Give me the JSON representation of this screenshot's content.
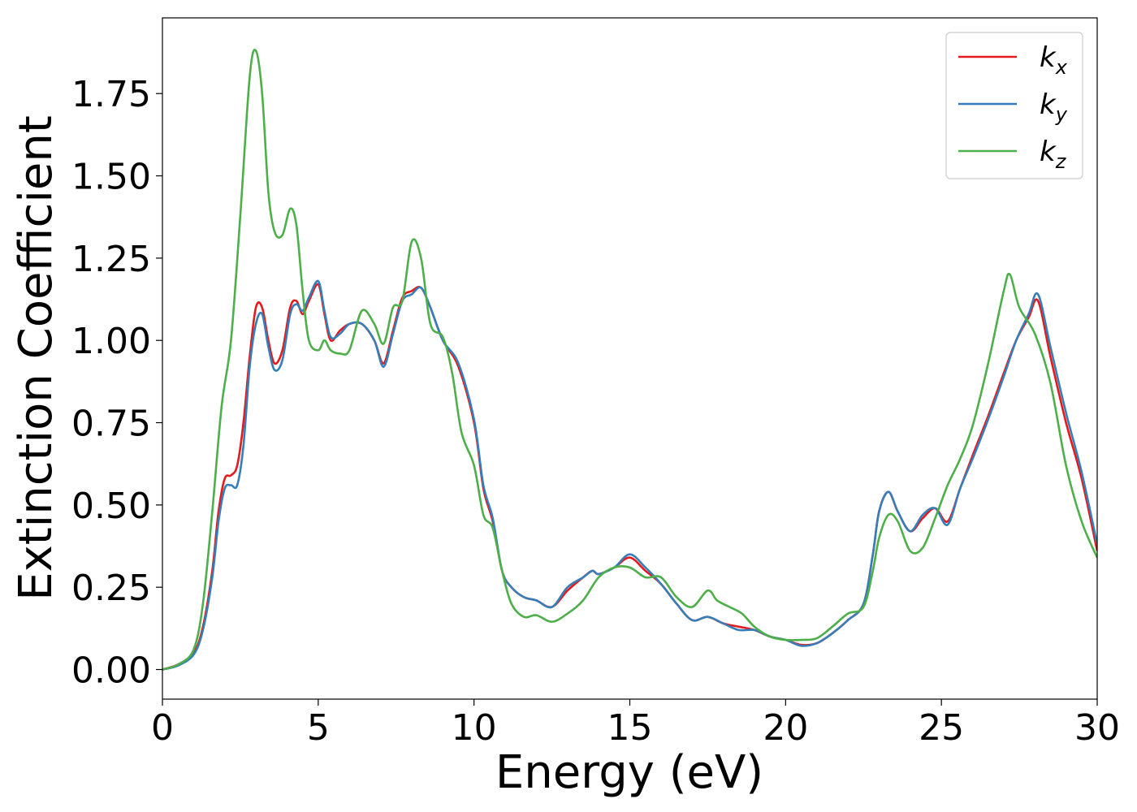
{
  "chart_data": {
    "type": "line",
    "xlabel": "Energy (eV)",
    "ylabel": "Extinction Coefficient",
    "xlim": [
      0,
      30
    ],
    "ylim": [
      -0.09,
      1.98
    ],
    "xticks": [
      0,
      5,
      10,
      15,
      20,
      25,
      30
    ],
    "xtick_labels": [
      "0",
      "5",
      "10",
      "15",
      "20",
      "25",
      "30"
    ],
    "yticks": [
      0.0,
      0.25,
      0.5,
      0.75,
      1.0,
      1.25,
      1.5,
      1.75
    ],
    "ytick_labels": [
      "0.00",
      "0.25",
      "0.50",
      "0.75",
      "1.00",
      "1.25",
      "1.50",
      "1.75"
    ],
    "grid": false,
    "legend_position": "top-right",
    "series": [
      {
        "name": "kx",
        "base": "k",
        "sub": "x",
        "color": "#e41a1c",
        "x": [
          0,
          0.5,
          1.0,
          1.3,
          1.6,
          1.8,
          2.0,
          2.2,
          2.4,
          2.6,
          2.8,
          3.0,
          3.2,
          3.4,
          3.6,
          3.85,
          4.1,
          4.3,
          4.5,
          4.7,
          5.0,
          5.2,
          5.4,
          5.7,
          6.0,
          6.4,
          6.8,
          7.1,
          7.4,
          7.7,
          8.0,
          8.3,
          8.6,
          9.0,
          9.5,
          10.0,
          10.3,
          10.6,
          10.9,
          11.2,
          11.6,
          12.0,
          12.5,
          13.0,
          13.5,
          13.8,
          14.0,
          14.5,
          15.0,
          15.5,
          16.0,
          16.5,
          17.0,
          17.5,
          18.0,
          18.5,
          19.0,
          19.5,
          20.0,
          20.5,
          21.0,
          21.5,
          22.0,
          22.5,
          22.8,
          23.0,
          23.3,
          23.6,
          24.0,
          24.4,
          24.8,
          25.2,
          25.6,
          26.0,
          26.5,
          27.0,
          27.4,
          27.8,
          28.1,
          28.5,
          29.0,
          29.5,
          30.0
        ],
        "y": [
          0.0,
          0.015,
          0.05,
          0.13,
          0.3,
          0.48,
          0.58,
          0.59,
          0.62,
          0.75,
          0.95,
          1.1,
          1.1,
          1.0,
          0.93,
          0.97,
          1.1,
          1.12,
          1.08,
          1.12,
          1.17,
          1.08,
          1.0,
          1.03,
          1.05,
          1.05,
          1.0,
          0.93,
          1.03,
          1.13,
          1.15,
          1.16,
          1.1,
          1.0,
          0.92,
          0.75,
          0.55,
          0.45,
          0.3,
          0.25,
          0.22,
          0.21,
          0.19,
          0.24,
          0.28,
          0.3,
          0.29,
          0.31,
          0.34,
          0.3,
          0.26,
          0.2,
          0.15,
          0.16,
          0.14,
          0.13,
          0.12,
          0.1,
          0.09,
          0.075,
          0.08,
          0.11,
          0.15,
          0.2,
          0.35,
          0.48,
          0.54,
          0.48,
          0.42,
          0.46,
          0.49,
          0.45,
          0.55,
          0.65,
          0.77,
          0.9,
          1.0,
          1.07,
          1.12,
          0.95,
          0.75,
          0.58,
          0.36
        ]
      },
      {
        "name": "ky",
        "base": "k",
        "sub": "y",
        "color": "#377eb8",
        "x": [
          0,
          0.5,
          1.0,
          1.3,
          1.6,
          1.8,
          2.0,
          2.2,
          2.4,
          2.6,
          2.8,
          3.0,
          3.2,
          3.4,
          3.6,
          3.85,
          4.1,
          4.3,
          4.5,
          4.7,
          5.0,
          5.2,
          5.4,
          5.7,
          6.0,
          6.4,
          6.8,
          7.1,
          7.4,
          7.7,
          8.0,
          8.3,
          8.6,
          9.0,
          9.5,
          10.0,
          10.3,
          10.6,
          10.9,
          11.2,
          11.6,
          12.0,
          12.5,
          13.0,
          13.5,
          13.8,
          14.0,
          14.5,
          15.0,
          15.5,
          16.0,
          16.5,
          17.0,
          17.5,
          18.0,
          18.5,
          19.0,
          19.5,
          20.0,
          20.5,
          21.0,
          21.5,
          22.0,
          22.5,
          22.8,
          23.0,
          23.3,
          23.6,
          24.0,
          24.4,
          24.8,
          25.2,
          25.6,
          26.0,
          26.5,
          27.0,
          27.4,
          27.8,
          28.1,
          28.5,
          29.0,
          29.5,
          30.0
        ],
        "y": [
          0.0,
          0.012,
          0.045,
          0.12,
          0.28,
          0.45,
          0.55,
          0.56,
          0.56,
          0.68,
          0.92,
          1.05,
          1.08,
          0.98,
          0.91,
          0.94,
          1.08,
          1.11,
          1.09,
          1.13,
          1.18,
          1.09,
          1.01,
          1.02,
          1.05,
          1.05,
          1.0,
          0.92,
          1.02,
          1.12,
          1.14,
          1.16,
          1.1,
          1.0,
          0.93,
          0.76,
          0.56,
          0.46,
          0.3,
          0.25,
          0.22,
          0.21,
          0.19,
          0.25,
          0.28,
          0.3,
          0.29,
          0.31,
          0.35,
          0.31,
          0.26,
          0.2,
          0.15,
          0.16,
          0.14,
          0.12,
          0.12,
          0.1,
          0.09,
          0.072,
          0.08,
          0.11,
          0.15,
          0.2,
          0.35,
          0.48,
          0.54,
          0.48,
          0.42,
          0.47,
          0.49,
          0.44,
          0.55,
          0.64,
          0.76,
          0.89,
          1.0,
          1.08,
          1.14,
          0.98,
          0.78,
          0.6,
          0.38
        ]
      },
      {
        "name": "kz",
        "base": "k",
        "sub": "z",
        "color": "#4daf4a",
        "x": [
          0,
          0.5,
          1.0,
          1.3,
          1.6,
          1.9,
          2.2,
          2.5,
          2.8,
          3.0,
          3.2,
          3.4,
          3.6,
          3.85,
          4.1,
          4.3,
          4.5,
          4.7,
          5.0,
          5.2,
          5.4,
          5.7,
          6.0,
          6.4,
          6.8,
          7.1,
          7.4,
          7.7,
          8.0,
          8.3,
          8.6,
          9.0,
          9.3,
          9.6,
          10.0,
          10.3,
          10.6,
          10.9,
          11.2,
          11.6,
          12.0,
          12.5,
          13.0,
          13.5,
          14.0,
          14.5,
          15.0,
          15.5,
          16.0,
          16.5,
          17.0,
          17.5,
          17.8,
          18.2,
          18.6,
          19.0,
          19.5,
          20.0,
          20.5,
          21.0,
          21.5,
          22.0,
          22.5,
          22.8,
          23.0,
          23.3,
          23.6,
          24.0,
          24.4,
          24.8,
          25.2,
          25.6,
          26.0,
          26.5,
          27.0,
          27.2,
          27.5,
          28.0,
          28.5,
          29.0,
          29.5,
          30.0
        ],
        "y": [
          0.0,
          0.015,
          0.06,
          0.2,
          0.48,
          0.8,
          1.0,
          1.38,
          1.8,
          1.88,
          1.75,
          1.45,
          1.33,
          1.32,
          1.4,
          1.35,
          1.15,
          1.0,
          0.97,
          1.0,
          0.97,
          0.96,
          0.97,
          1.09,
          1.05,
          0.99,
          1.1,
          1.12,
          1.3,
          1.25,
          1.05,
          1.01,
          0.9,
          0.72,
          0.62,
          0.47,
          0.43,
          0.3,
          0.2,
          0.16,
          0.165,
          0.145,
          0.17,
          0.21,
          0.28,
          0.31,
          0.31,
          0.28,
          0.28,
          0.22,
          0.19,
          0.24,
          0.21,
          0.19,
          0.17,
          0.13,
          0.1,
          0.09,
          0.09,
          0.095,
          0.13,
          0.17,
          0.19,
          0.3,
          0.4,
          0.47,
          0.45,
          0.36,
          0.37,
          0.46,
          0.56,
          0.64,
          0.74,
          0.93,
          1.15,
          1.2,
          1.1,
          1.02,
          0.87,
          0.62,
          0.45,
          0.34
        ]
      }
    ]
  }
}
